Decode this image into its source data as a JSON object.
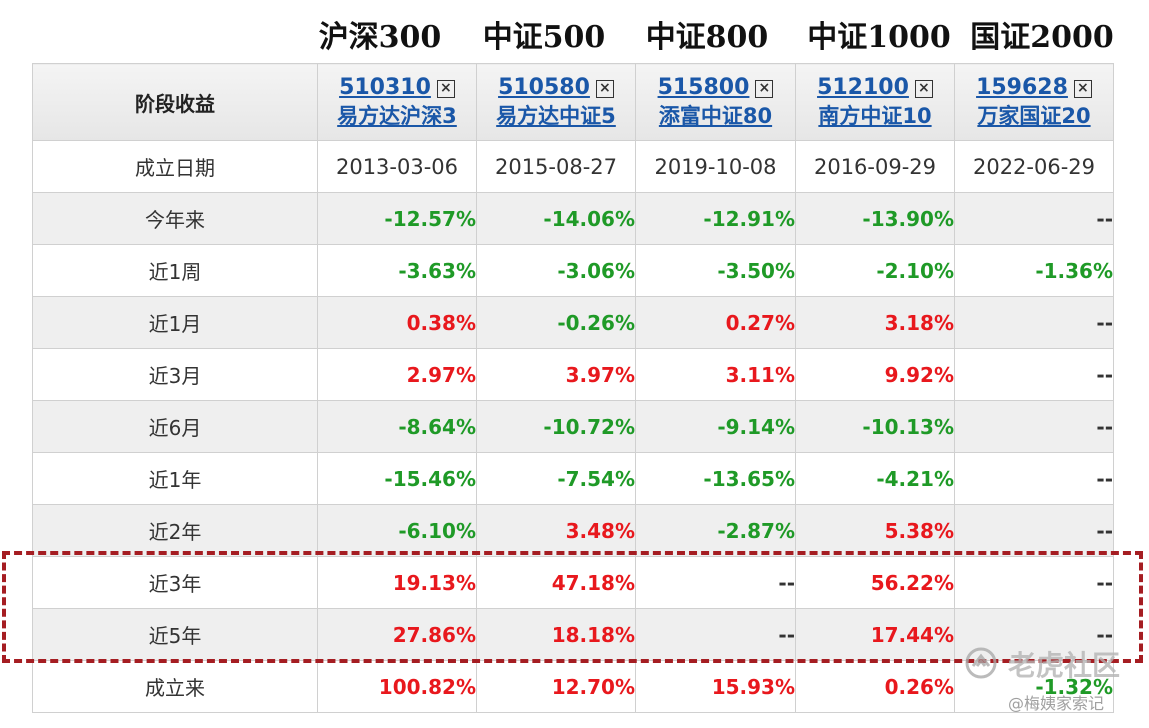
{
  "indices": [
    "沪深300",
    "中证500",
    "中证800",
    "中证1000",
    "国证2000"
  ],
  "table": {
    "header_label": "阶段收益",
    "funds": [
      {
        "code": "510310",
        "name": "易方达沪深3"
      },
      {
        "code": "510580",
        "name": "易方达中证5"
      },
      {
        "code": "515800",
        "name": "添富中证80"
      },
      {
        "code": "512100",
        "name": "南方中证10"
      },
      {
        "code": "159628",
        "name": "万家国证20"
      }
    ],
    "inception_label": "成立日期",
    "inception_dates": [
      "2013-03-06",
      "2015-08-27",
      "2019-10-08",
      "2016-09-29",
      "2022-06-29"
    ],
    "rows": [
      {
        "label": "今年来",
        "values": [
          "-12.57%",
          "-14.06%",
          "-12.91%",
          "-13.90%",
          "--"
        ]
      },
      {
        "label": "近1周",
        "values": [
          "-3.63%",
          "-3.06%",
          "-3.50%",
          "-2.10%",
          "-1.36%"
        ]
      },
      {
        "label": "近1月",
        "values": [
          "0.38%",
          "-0.26%",
          "0.27%",
          "3.18%",
          "--"
        ]
      },
      {
        "label": "近3月",
        "values": [
          "2.97%",
          "3.97%",
          "3.11%",
          "9.92%",
          "--"
        ]
      },
      {
        "label": "近6月",
        "values": [
          "-8.64%",
          "-10.72%",
          "-9.14%",
          "-10.13%",
          "--"
        ]
      },
      {
        "label": "近1年",
        "values": [
          "-15.46%",
          "-7.54%",
          "-13.65%",
          "-4.21%",
          "--"
        ]
      },
      {
        "label": "近2年",
        "values": [
          "-6.10%",
          "3.48%",
          "-2.87%",
          "5.38%",
          "--"
        ]
      },
      {
        "label": "近3年",
        "values": [
          "19.13%",
          "47.18%",
          "--",
          "56.22%",
          "--"
        ]
      },
      {
        "label": "近5年",
        "values": [
          "27.86%",
          "18.18%",
          "--",
          "17.44%",
          "--"
        ]
      },
      {
        "label": "成立来",
        "values": [
          "100.82%",
          "12.70%",
          "15.93%",
          "0.26%",
          "-1.32%"
        ]
      }
    ]
  },
  "colors": {
    "positive": "#e8181d",
    "negative": "#1f9a27",
    "link": "#1a57a8",
    "highlight": "#a51d22"
  },
  "watermark": {
    "name": "老虎社区",
    "user": "@梅姨家索记"
  }
}
